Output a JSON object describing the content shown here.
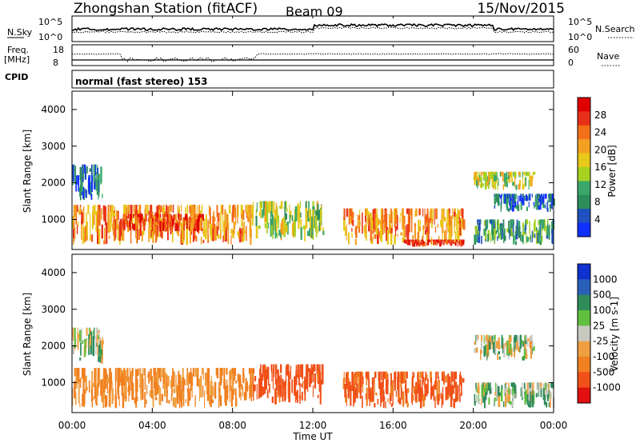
{
  "header": {
    "station": "Zhongshan Station (fitACF)",
    "beam": "Beam 09",
    "date": "15/Nov/2015"
  },
  "top_panels": {
    "nsky_label": "N.Sky",
    "nsearch_label": "N.Search",
    "nsky_ticks": [
      "10^5",
      "10^0"
    ],
    "nsearch_ticks": [
      "10^5",
      "10^0"
    ],
    "freq_label_1": "Freq.",
    "freq_label_2": "[MHz]",
    "freq_ticks": [
      "18",
      "8"
    ],
    "nave_label": "Nave",
    "nave_ticks": [
      "60",
      "0"
    ],
    "cpid_label": "CPID",
    "cpid_text": "normal (fast stereo) 153"
  },
  "x_axis": {
    "label": "Time UT",
    "ticks": [
      "00:00",
      "04:00",
      "08:00",
      "12:00",
      "16:00",
      "20:00",
      "00:00"
    ],
    "hours": [
      0,
      4,
      8,
      12,
      16,
      20,
      24
    ]
  },
  "power_panel": {
    "ylabel": "Slant Range [km]",
    "yticks": [
      1000,
      2000,
      3000,
      4000
    ],
    "cbar_label": "Power [dB]",
    "cbar_ticks": [
      "4",
      "8",
      "12",
      "16",
      "20",
      "24",
      "28"
    ],
    "cbar_colors": [
      "#1030ff",
      "#2050c0",
      "#2e8c5a",
      "#3aa86a",
      "#a8d020",
      "#e8c818",
      "#f4a020",
      "#f47018",
      "#e83018",
      "#e00000"
    ]
  },
  "velocity_panel": {
    "ylabel": "Slant Range [km]",
    "yticks": [
      1000,
      2000,
      3000,
      4000
    ],
    "cbar_label": "Velocity [m s-1]",
    "cbar_ticks": [
      "1000",
      "500",
      "100",
      "25",
      "-25",
      "-100",
      "-500",
      "-1000"
    ],
    "cbar_colors": [
      "#1030d0",
      "#2a60b8",
      "#2e8c5a",
      "#60c040",
      "#c8c8c0",
      "#f0a040",
      "#f08020",
      "#f05018",
      "#e01010"
    ]
  },
  "chart_data": [
    {
      "type": "heatmap",
      "title": "Power",
      "xlabel": "Time UT",
      "ylabel": "Slant Range [km]",
      "xlim": [
        0,
        24
      ],
      "ylim": [
        180,
        4500
      ],
      "colorbar": {
        "label": "Power [dB]",
        "ticks": [
          4,
          8,
          12,
          16,
          20,
          24,
          28
        ]
      },
      "echo_regions": [
        {
          "t0": 0.0,
          "t1": 9.0,
          "r0": 300,
          "r1": 1400,
          "power": 22
        },
        {
          "t0": 0.0,
          "t1": 1.5,
          "r0": 1500,
          "r1": 2500,
          "power": 6
        },
        {
          "t0": 2.5,
          "t1": 6.5,
          "r0": 650,
          "r1": 1150,
          "power": 26
        },
        {
          "t0": 9.0,
          "t1": 12.5,
          "r0": 400,
          "r1": 1500,
          "power": 14
        },
        {
          "t0": 13.5,
          "t1": 19.5,
          "r0": 300,
          "r1": 1300,
          "power": 22
        },
        {
          "t0": 16.5,
          "t1": 19.5,
          "r0": 250,
          "r1": 450,
          "power": 28
        },
        {
          "t0": 20.0,
          "t1": 23.0,
          "r0": 1800,
          "r1": 2300,
          "power": 16
        },
        {
          "t0": 21.0,
          "t1": 24.0,
          "r0": 1200,
          "r1": 1700,
          "power": 6
        },
        {
          "t0": 20.0,
          "t1": 24.0,
          "r0": 300,
          "r1": 1000,
          "power": 10
        }
      ]
    },
    {
      "type": "heatmap",
      "title": "Velocity",
      "xlabel": "Time UT",
      "ylabel": "Slant Range [km]",
      "xlim": [
        0,
        24
      ],
      "ylim": [
        180,
        4500
      ],
      "colorbar": {
        "label": "Velocity [m s-1]",
        "ticks": [
          1000,
          500,
          100,
          25,
          -25,
          -100,
          -500,
          -1000
        ]
      },
      "echo_regions": [
        {
          "t0": 0.0,
          "t1": 9.0,
          "r0": 300,
          "r1": 1400,
          "velocity": -150
        },
        {
          "t0": 0.0,
          "t1": 1.5,
          "r0": 1500,
          "r1": 2500,
          "velocity": 0
        },
        {
          "t0": 9.0,
          "t1": 12.5,
          "r0": 400,
          "r1": 1500,
          "velocity": -400
        },
        {
          "t0": 13.5,
          "t1": 19.5,
          "r0": 300,
          "r1": 1300,
          "velocity": -350
        },
        {
          "t0": 20.0,
          "t1": 23.0,
          "r0": 1600,
          "r1": 2300,
          "velocity": 0
        },
        {
          "t0": 20.0,
          "t1": 24.0,
          "r0": 300,
          "r1": 1000,
          "velocity": 50
        }
      ]
    }
  ]
}
